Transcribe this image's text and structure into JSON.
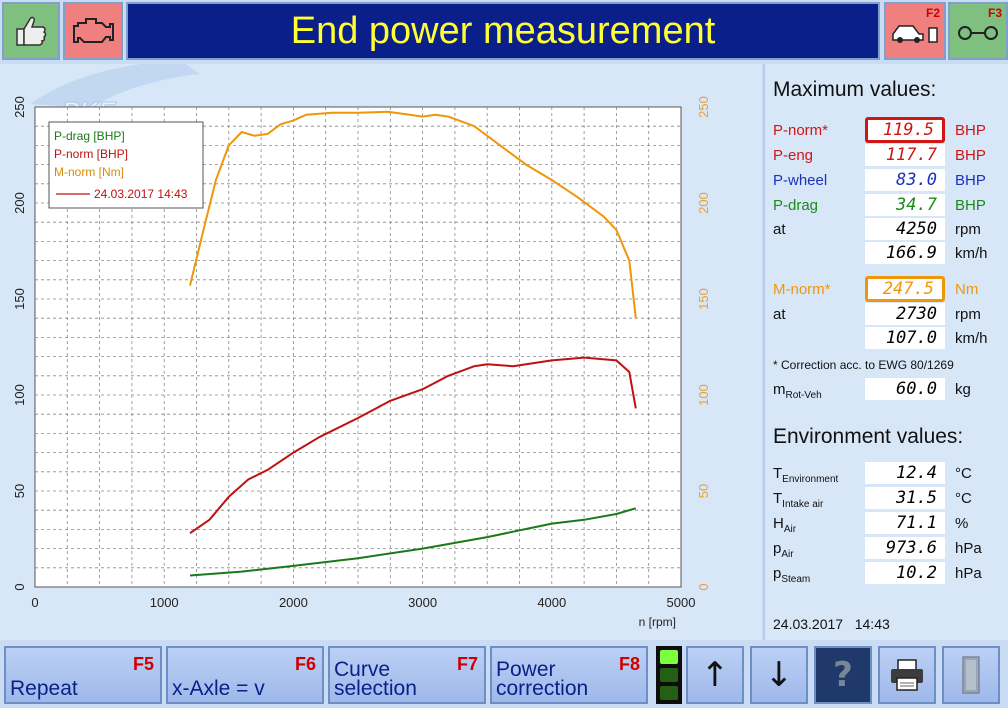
{
  "header": {
    "title": "End power measurement",
    "f2_key": "F2",
    "f3_key": "F3"
  },
  "chart_data": {
    "type": "line",
    "xlabel": "n [rpm]",
    "x_ticks": [
      "0",
      "1000",
      "2000",
      "3000",
      "4000",
      "5000"
    ],
    "y_left_ticks": [
      "0",
      "50",
      "100",
      "150",
      "200",
      "250"
    ],
    "y_right_ticks": [
      "0",
      "50",
      "100",
      "150",
      "200",
      "250"
    ],
    "xlim": [
      0,
      5000
    ],
    "ylim_left": [
      0,
      250
    ],
    "ylim_right": [
      0,
      250
    ],
    "grid": true,
    "legend_placement": "top-left",
    "legend": {
      "entries": [
        "P-drag [BHP]",
        "P-norm [BHP]",
        "M-norm [Nm]"
      ],
      "run_label": "24.03.2017 14:43"
    },
    "series": [
      {
        "name": "P-drag [BHP]",
        "color": "#1a7a1a",
        "points": [
          [
            1200,
            6
          ],
          [
            1600,
            8
          ],
          [
            2000,
            11
          ],
          [
            2500,
            15
          ],
          [
            3000,
            20
          ],
          [
            3500,
            26
          ],
          [
            4000,
            33
          ],
          [
            4250,
            35
          ],
          [
            4500,
            38
          ],
          [
            4650,
            41
          ]
        ]
      },
      {
        "name": "P-norm [BHP]",
        "color": "#c01010",
        "points": [
          [
            1200,
            28
          ],
          [
            1350,
            35
          ],
          [
            1500,
            47
          ],
          [
            1650,
            56
          ],
          [
            1800,
            61
          ],
          [
            2000,
            70
          ],
          [
            2200,
            78
          ],
          [
            2500,
            88
          ],
          [
            2750,
            97
          ],
          [
            3000,
            103
          ],
          [
            3200,
            110
          ],
          [
            3400,
            115
          ],
          [
            3500,
            116
          ],
          [
            3700,
            115
          ],
          [
            4000,
            118
          ],
          [
            4250,
            119.5
          ],
          [
            4500,
            118
          ],
          [
            4600,
            112
          ],
          [
            4650,
            93
          ]
        ]
      },
      {
        "name": "M-norm [Nm]",
        "color": "#f0960a",
        "points": [
          [
            1200,
            157
          ],
          [
            1300,
            185
          ],
          [
            1400,
            212
          ],
          [
            1500,
            230
          ],
          [
            1600,
            237
          ],
          [
            1700,
            235
          ],
          [
            1800,
            236
          ],
          [
            1900,
            241
          ],
          [
            2000,
            243
          ],
          [
            2100,
            246
          ],
          [
            2300,
            247
          ],
          [
            2500,
            247
          ],
          [
            2730,
            247.5
          ],
          [
            2900,
            246
          ],
          [
            3000,
            245
          ],
          [
            3100,
            246
          ],
          [
            3200,
            245
          ],
          [
            3400,
            240
          ],
          [
            3600,
            230
          ],
          [
            3800,
            220
          ],
          [
            4000,
            212
          ],
          [
            4200,
            203
          ],
          [
            4400,
            193
          ],
          [
            4500,
            186
          ],
          [
            4600,
            170
          ],
          [
            4650,
            140
          ]
        ]
      }
    ]
  },
  "max_values": {
    "title": "Maximum values:",
    "rows": [
      {
        "label": "P-norm*",
        "value": "119.5",
        "unit": "BHP"
      },
      {
        "label": "P-eng",
        "value": "117.7",
        "unit": "BHP"
      },
      {
        "label": "P-wheel",
        "value": "83.0",
        "unit": "BHP"
      },
      {
        "label": "P-drag",
        "value": "34.7",
        "unit": "BHP"
      },
      {
        "label": "at",
        "value": "4250",
        "unit": "rpm"
      },
      {
        "label": "",
        "value": "166.9",
        "unit": "km/h"
      },
      {
        "label": "M-norm*",
        "value": "247.5",
        "unit": "Nm"
      },
      {
        "label": "at",
        "value": "2730",
        "unit": "rpm"
      },
      {
        "label": "",
        "value": "107.0",
        "unit": "km/h"
      }
    ],
    "note": "* Correction acc. to EWG 80/1269",
    "mass": {
      "label": "m",
      "sub": "Rot-Veh",
      "value": "60.0",
      "unit": "kg"
    }
  },
  "environment": {
    "title": "Environment values:",
    "rows": [
      {
        "label": "T",
        "sub": "Environment",
        "value": "12.4",
        "unit": "°C"
      },
      {
        "label": "T",
        "sub": "Intake air",
        "value": "31.5",
        "unit": "°C"
      },
      {
        "label": "H",
        "sub": "Air",
        "value": "71.1",
        "unit": "%"
      },
      {
        "label": "p",
        "sub": "Air",
        "value": "973.6",
        "unit": "hPa"
      },
      {
        "label": "p",
        "sub": "Steam",
        "value": "10.2",
        "unit": "hPa"
      }
    ],
    "datetime": "24.03.2017   14:43"
  },
  "colors": {
    "p_norm": "#d01515",
    "p_eng": "#d01515",
    "p_wheel": "#1a30c0",
    "p_drag": "#1a8a1a",
    "m_norm": "#f0960a"
  },
  "footer": {
    "buttons": [
      {
        "key": "F5",
        "label": "Repeat"
      },
      {
        "key": "F6",
        "label": "x-Axle = v"
      },
      {
        "key": "F7",
        "label": "Curve selection"
      },
      {
        "key": "F8",
        "label": "Power correction"
      }
    ],
    "icons": [
      "arrow-up-icon",
      "arrow-down-icon",
      "help-icon",
      "printer-icon",
      "exit-icon"
    ]
  }
}
